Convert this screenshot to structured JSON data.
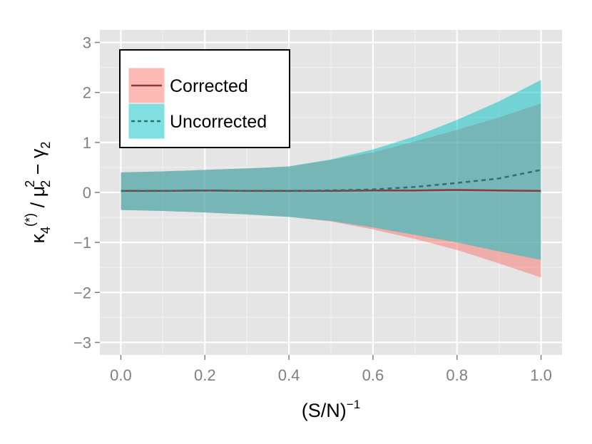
{
  "chart_data": {
    "type": "area",
    "xlabel_base": "(S/N)",
    "xlabel_sup": "−1",
    "ylabel": {
      "kappa": "κ",
      "kappa_sub": "4",
      "kappa_sup": "(*)",
      "slash": " / ",
      "mu": "μ",
      "mu_sub": "2",
      "mu_sup": "2",
      "minus": " − ",
      "gamma": "γ",
      "gamma_sub": "2"
    },
    "xlim": [
      -0.05,
      1.05
    ],
    "ylim": [
      -3.25,
      3.25
    ],
    "x_ticks": [
      0.0,
      0.2,
      0.4,
      0.6,
      0.8,
      1.0
    ],
    "x_tick_labels": [
      "0.0",
      "0.2",
      "0.4",
      "0.6",
      "0.8",
      "1.0"
    ],
    "y_ticks": [
      -3,
      -2,
      -1,
      0,
      1,
      2,
      3
    ],
    "y_tick_labels": [
      "−3",
      "−2",
      "−1",
      "0",
      "1",
      "2",
      "3"
    ],
    "grid": true,
    "legend_position": "top-left",
    "series": [
      {
        "name": "Corrected",
        "color": "#F8766D",
        "line_color": "#8B3A3A",
        "line_style": "solid",
        "x": [
          0.0,
          0.1,
          0.2,
          0.3,
          0.4,
          0.5,
          0.6,
          0.7,
          0.8,
          0.9,
          1.0
        ],
        "mean": [
          0.03,
          0.03,
          0.04,
          0.03,
          0.03,
          0.03,
          0.04,
          0.04,
          0.05,
          0.04,
          0.03
        ],
        "upper": [
          0.4,
          0.42,
          0.45,
          0.48,
          0.52,
          0.65,
          0.8,
          1.02,
          1.25,
          1.5,
          1.78
        ],
        "lower": [
          -0.35,
          -0.37,
          -0.4,
          -0.44,
          -0.49,
          -0.58,
          -0.74,
          -0.93,
          -1.15,
          -1.42,
          -1.7
        ]
      },
      {
        "name": "Uncorrected",
        "color": "#00BFC4",
        "line_color": "#2F6F6F",
        "line_style": "dashed",
        "x": [
          0.0,
          0.1,
          0.2,
          0.3,
          0.4,
          0.5,
          0.6,
          0.7,
          0.8,
          0.9,
          1.0
        ],
        "mean": [
          0.03,
          0.03,
          0.04,
          0.03,
          0.03,
          0.04,
          0.06,
          0.11,
          0.19,
          0.28,
          0.45
        ],
        "upper": [
          0.4,
          0.42,
          0.45,
          0.48,
          0.52,
          0.66,
          0.86,
          1.12,
          1.45,
          1.82,
          2.25
        ],
        "lower": [
          -0.35,
          -0.37,
          -0.4,
          -0.44,
          -0.49,
          -0.57,
          -0.7,
          -0.85,
          -1.0,
          -1.18,
          -1.35
        ]
      }
    ]
  }
}
